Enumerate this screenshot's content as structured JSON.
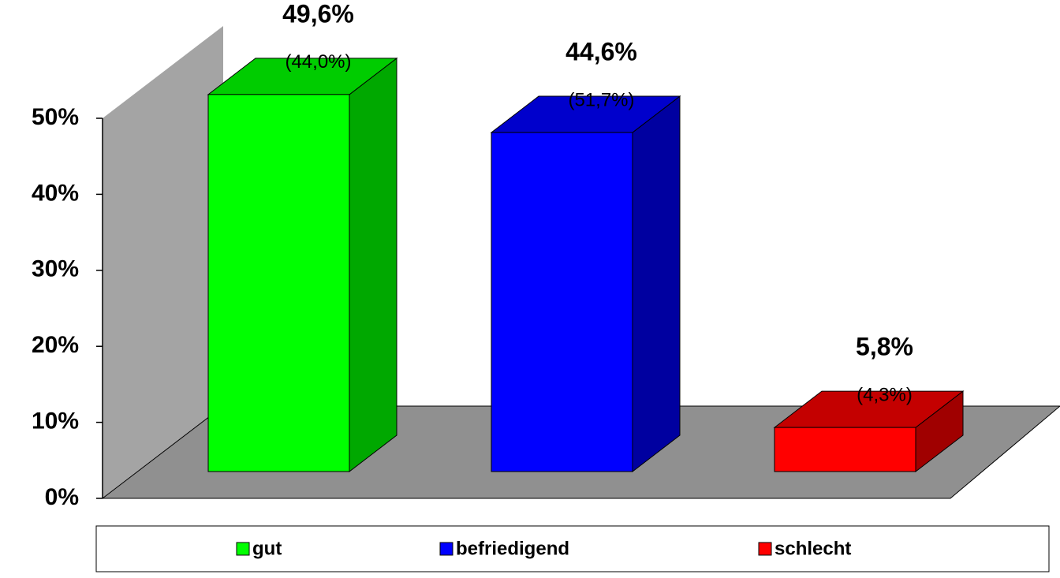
{
  "chart_data": {
    "type": "bar3d",
    "categories": [
      "gut",
      "befriedigend",
      "schlecht"
    ],
    "values": [
      49.6,
      44.6,
      5.8
    ],
    "value_labels": [
      "49,6%",
      "44,6%",
      "5,8%"
    ],
    "annotations": [
      "(44,0%)",
      "(51,7%)",
      "(4,3%)"
    ],
    "colors": [
      "#00ff00",
      "#0000ff",
      "#ff0000"
    ],
    "side_colors": [
      "#00a800",
      "#0000a0",
      "#a00000"
    ],
    "top_colors": [
      "#00cc00",
      "#0000cc",
      "#c40000"
    ],
    "ylim": [
      0,
      50
    ],
    "yticks": [
      {
        "value": 0,
        "label": "0%"
      },
      {
        "value": 10,
        "label": "10%"
      },
      {
        "value": 20,
        "label": "20%"
      },
      {
        "value": 30,
        "label": "30%"
      },
      {
        "value": 40,
        "label": "40%"
      },
      {
        "value": 50,
        "label": "50%"
      }
    ],
    "legend": "bottom"
  }
}
